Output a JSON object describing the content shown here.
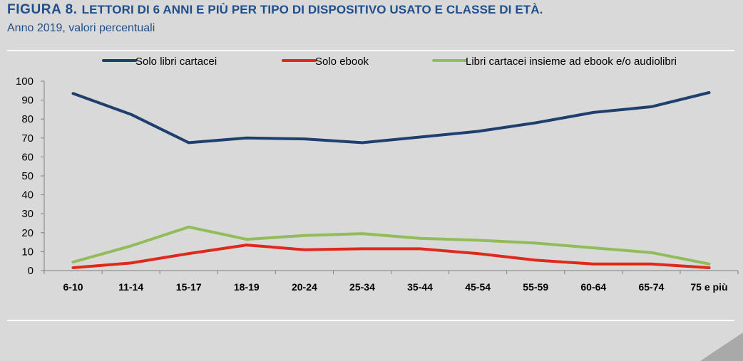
{
  "header": {
    "figure_label": "FIGURA 8.",
    "title": "LETTORI DI 6 ANNI E PIÙ PER TIPO DI DISPOSITIVO USATO E CLASSE DI ETÀ.",
    "subtitle": "Anno 2019, valori percentuali"
  },
  "chart_data": {
    "type": "line",
    "categories": [
      "6-10",
      "11-14",
      "15-17",
      "18-19",
      "20-24",
      "25-34",
      "35-44",
      "45-54",
      "55-59",
      "60-64",
      "65-74",
      "75 e più"
    ],
    "ylim": [
      0,
      100
    ],
    "yticks": [
      0,
      10,
      20,
      30,
      40,
      50,
      60,
      70,
      80,
      90,
      100
    ],
    "grid": false,
    "legend_position": "top",
    "series": [
      {
        "name": "Solo libri cartacei",
        "color": "#1f3f6e",
        "values": [
          93.5,
          82.5,
          67.5,
          70,
          69.5,
          67.5,
          70.5,
          73.5,
          78,
          83.5,
          86.5,
          94
        ]
      },
      {
        "name": "Solo ebook",
        "color": "#e0281c",
        "values": [
          1.5,
          4,
          9,
          13.5,
          11,
          11.5,
          11.5,
          9,
          5.5,
          3.5,
          3.5,
          1.5
        ]
      },
      {
        "name": "Libri cartacei insieme ad ebook e/o audiolibri",
        "color": "#92bc5a",
        "values": [
          4.5,
          13,
          23,
          16.5,
          18.5,
          19.5,
          17,
          16,
          14.5,
          12,
          9.5,
          3.5
        ]
      }
    ]
  }
}
